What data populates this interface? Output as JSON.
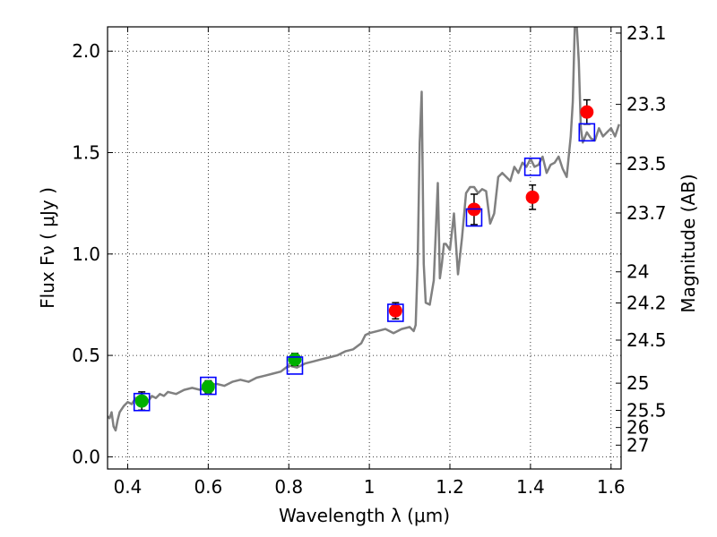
{
  "chart_data": {
    "type": "scatter",
    "xlabel": "Wavelength  λ (μm)",
    "ylabel": "Flux  Fν  ( μJy )",
    "ylabel_right": "Magnitude (AB)",
    "xlim": [
      0.35,
      1.625
    ],
    "ylim": [
      -0.06,
      2.12
    ],
    "grid": true,
    "x_ticks": [
      0.4,
      0.6,
      0.8,
      1.0,
      1.2,
      1.4,
      1.6
    ],
    "x_tick_labels": [
      "0.4",
      "0.6",
      "0.8",
      "1",
      "1.2",
      "1.4",
      "1.6"
    ],
    "y_ticks": [
      0.0,
      0.5,
      1.0,
      1.5,
      2.0
    ],
    "y_tick_labels": [
      "0.0",
      "0.5",
      "1.0",
      "1.5",
      "2.0"
    ],
    "mag_ticks": [
      {
        "label": "23.1",
        "value": 23.1
      },
      {
        "label": "23.3",
        "value": 23.3
      },
      {
        "label": "23.5",
        "value": 23.5
      },
      {
        "label": "23.7",
        "value": 23.7
      },
      {
        "label": "24",
        "value": 24.0
      },
      {
        "label": "24.2",
        "value": 24.2
      },
      {
        "label": "24.5",
        "value": 24.5
      },
      {
        "label": "25",
        "value": 25.0
      },
      {
        "label": "25.5",
        "value": 25.5
      },
      {
        "label": "26",
        "value": 26.0
      },
      {
        "label": "27",
        "value": 27.0
      }
    ],
    "series": [
      {
        "marker": "line",
        "color": "#808080",
        "x": [
          0.35,
          0.355,
          0.36,
          0.365,
          0.37,
          0.375,
          0.38,
          0.39,
          0.4,
          0.41,
          0.42,
          0.43,
          0.44,
          0.45,
          0.46,
          0.47,
          0.48,
          0.49,
          0.5,
          0.52,
          0.54,
          0.56,
          0.58,
          0.6,
          0.62,
          0.64,
          0.66,
          0.68,
          0.7,
          0.72,
          0.74,
          0.76,
          0.78,
          0.8,
          0.82,
          0.84,
          0.86,
          0.88,
          0.9,
          0.92,
          0.94,
          0.96,
          0.98,
          0.99,
          1.0,
          1.02,
          1.04,
          1.06,
          1.08,
          1.1,
          1.11,
          1.115,
          1.12,
          1.125,
          1.13,
          1.135,
          1.14,
          1.15,
          1.16,
          1.17,
          1.175,
          1.18,
          1.185,
          1.19,
          1.2,
          1.21,
          1.22,
          1.23,
          1.24,
          1.25,
          1.26,
          1.27,
          1.28,
          1.29,
          1.3,
          1.31,
          1.32,
          1.33,
          1.34,
          1.35,
          1.36,
          1.37,
          1.38,
          1.39,
          1.4,
          1.41,
          1.42,
          1.43,
          1.44,
          1.45,
          1.46,
          1.47,
          1.48,
          1.49,
          1.5,
          1.505,
          1.51,
          1.515,
          1.52,
          1.525,
          1.53,
          1.54,
          1.55,
          1.56,
          1.57,
          1.58,
          1.59,
          1.6,
          1.61,
          1.62
        ],
        "y": [
          0.2,
          0.19,
          0.22,
          0.15,
          0.13,
          0.18,
          0.22,
          0.25,
          0.27,
          0.26,
          0.29,
          0.28,
          0.3,
          0.27,
          0.3,
          0.29,
          0.31,
          0.3,
          0.32,
          0.31,
          0.33,
          0.34,
          0.33,
          0.35,
          0.36,
          0.35,
          0.37,
          0.38,
          0.37,
          0.39,
          0.4,
          0.41,
          0.42,
          0.45,
          0.44,
          0.46,
          0.47,
          0.48,
          0.49,
          0.5,
          0.52,
          0.53,
          0.56,
          0.6,
          0.61,
          0.62,
          0.63,
          0.61,
          0.63,
          0.64,
          0.62,
          0.65,
          0.95,
          1.55,
          1.8,
          0.95,
          0.76,
          0.75,
          0.87,
          1.35,
          0.88,
          0.95,
          1.05,
          1.05,
          1.02,
          1.2,
          0.9,
          1.08,
          1.3,
          1.33,
          1.33,
          1.3,
          1.32,
          1.31,
          1.15,
          1.2,
          1.38,
          1.4,
          1.38,
          1.36,
          1.43,
          1.4,
          1.45,
          1.43,
          1.47,
          1.43,
          1.44,
          1.48,
          1.4,
          1.44,
          1.45,
          1.48,
          1.42,
          1.38,
          1.58,
          1.75,
          2.12,
          2.12,
          1.95,
          1.62,
          1.55,
          1.6,
          1.57,
          1.56,
          1.62,
          1.58,
          1.6,
          1.62,
          1.58,
          1.64
        ]
      },
      {
        "marker": "circle",
        "color": "#00b000",
        "x": [
          0.435,
          0.6,
          0.815
        ],
        "y": [
          0.275,
          0.345,
          0.48
        ],
        "err": [
          0.045,
          0.03,
          0.03
        ]
      },
      {
        "marker": "circle",
        "color": "#ff0000",
        "x": [
          1.065,
          1.26,
          1.405,
          1.54
        ],
        "y": [
          0.72,
          1.22,
          1.28,
          1.7
        ],
        "err": [
          0.04,
          0.075,
          0.06,
          0.06
        ]
      },
      {
        "marker": "square",
        "color": "#0000ff",
        "x": [
          0.435,
          0.6,
          0.815,
          1.065,
          1.26,
          1.405,
          1.54
        ],
        "y": [
          0.27,
          0.35,
          0.45,
          0.71,
          1.18,
          1.43,
          1.6
        ]
      }
    ]
  }
}
